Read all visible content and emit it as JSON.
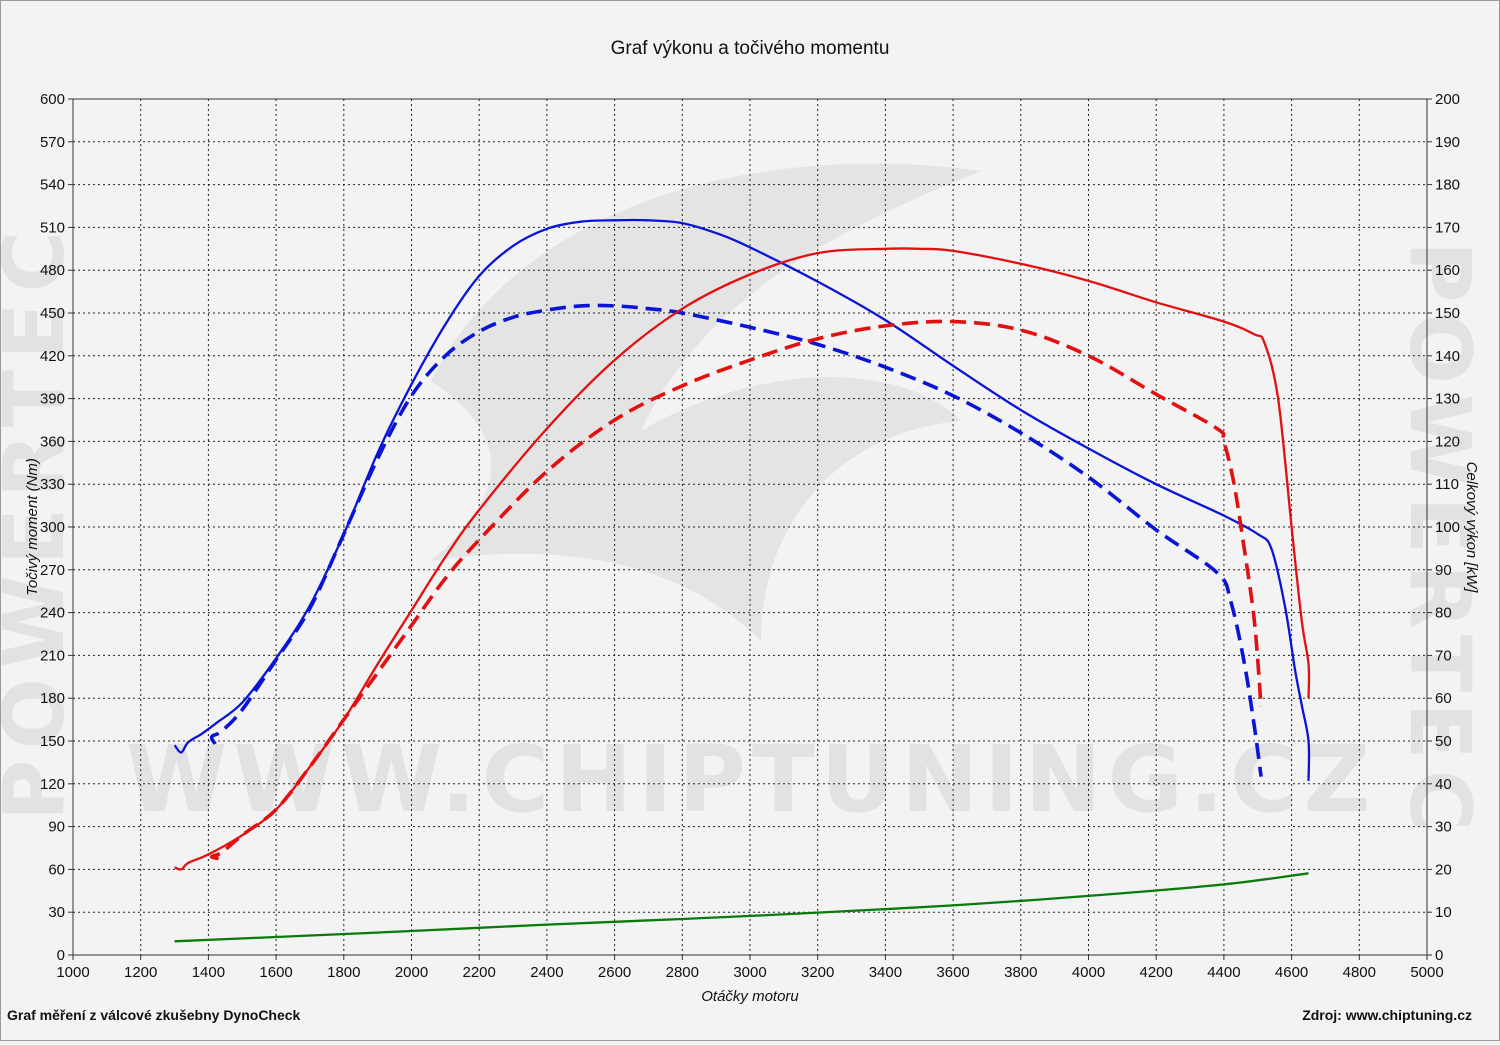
{
  "chart_data": {
    "type": "line",
    "title": "Graf výkonu a točivého momentu",
    "xlabel": "Otáčky motoru",
    "ylabel_left": "Točivý moment (Nm)",
    "ylabel_right": "Celkový výkon [kW]",
    "xlim": [
      1000,
      5000
    ],
    "xticks": [
      1000,
      1200,
      1400,
      1600,
      1800,
      2000,
      2200,
      2400,
      2600,
      2800,
      3000,
      3200,
      3400,
      3600,
      3800,
      4000,
      4200,
      4400,
      4600,
      4800,
      5000
    ],
    "ylim_left": [
      0,
      600
    ],
    "yticks_left": [
      0,
      30,
      60,
      90,
      120,
      150,
      180,
      210,
      240,
      270,
      300,
      330,
      360,
      390,
      420,
      450,
      480,
      510,
      540,
      570,
      600
    ],
    "ylim_right": [
      0,
      200
    ],
    "yticks_right": [
      0,
      10,
      20,
      30,
      40,
      50,
      60,
      70,
      80,
      90,
      100,
      110,
      120,
      130,
      140,
      150,
      160,
      170,
      180,
      190,
      200
    ],
    "grid": true,
    "series": [
      {
        "color": "#0a14d6",
        "style": "solid",
        "axis": "left",
        "x": [
          1300,
          1320,
          1340,
          1380,
          1420,
          1500,
          1600,
          1700,
          1800,
          1900,
          2000,
          2100,
          2200,
          2300,
          2400,
          2500,
          2600,
          2700,
          2800,
          2900,
          3000,
          3200,
          3400,
          3600,
          3800,
          4000,
          4200,
          4400,
          4500,
          4540,
          4580,
          4610,
          4630,
          4650,
          4650
        ],
        "y": [
          147,
          142,
          149,
          155,
          162,
          177,
          208,
          245,
          295,
          352,
          400,
          442,
          476,
          497,
          509,
          514,
          515,
          515,
          513,
          506,
          496,
          472,
          445,
          413,
          382,
          355,
          330,
          308,
          295,
          285,
          245,
          200,
          175,
          150,
          122
        ]
      },
      {
        "color": "#0a14d6",
        "style": "dashed",
        "axis": "left",
        "x": [
          1420,
          1410,
          1440,
          1500,
          1600,
          1700,
          1800,
          1900,
          2000,
          2100,
          2200,
          2300,
          2400,
          2500,
          2600,
          2700,
          2800,
          3000,
          3200,
          3400,
          3600,
          3800,
          4000,
          4200,
          4380,
          4420,
          4460,
          4490,
          4510
        ],
        "y": [
          148,
          153,
          157,
          172,
          207,
          243,
          295,
          348,
          392,
          420,
          437,
          447,
          452,
          455,
          455,
          453,
          450,
          440,
          428,
          412,
          392,
          366,
          335,
          298,
          268,
          248,
          205,
          160,
          125
        ]
      },
      {
        "color": "#e21010",
        "style": "solid",
        "axis": "right",
        "x": [
          1300,
          1320,
          1340,
          1400,
          1500,
          1600,
          1700,
          1800,
          1900,
          2000,
          2100,
          2200,
          2400,
          2600,
          2800,
          3000,
          3200,
          3400,
          3500,
          3600,
          3800,
          4000,
          4200,
          4400,
          4490,
          4520,
          4560,
          4600,
          4630,
          4650,
          4650
        ],
        "y": [
          20.5,
          20,
          21.5,
          23.5,
          28,
          34,
          44,
          55,
          68,
          80.5,
          93,
          104,
          123,
          139,
          151,
          159,
          164,
          165,
          165,
          164.5,
          161.5,
          157.5,
          152.5,
          148,
          145,
          143,
          130,
          100,
          78,
          68,
          60
        ]
      },
      {
        "color": "#e21010",
        "style": "dashed",
        "axis": "right",
        "x": [
          1430,
          1410,
          1440,
          1500,
          1600,
          1700,
          1800,
          1900,
          2000,
          2100,
          2200,
          2400,
          2600,
          2800,
          3000,
          3200,
          3400,
          3600,
          3800,
          4000,
          4200,
          4380,
          4400,
          4430,
          4460,
          4490,
          4510
        ],
        "y": [
          22.5,
          23,
          24,
          28,
          34,
          44,
          55,
          66,
          77,
          88,
          97,
          113,
          125,
          133,
          139,
          144,
          147,
          148,
          146,
          140,
          131,
          123,
          120,
          110,
          95,
          78,
          58
        ]
      },
      {
        "color": "#0a7a0a",
        "style": "solid",
        "axis": "right",
        "x": [
          1300,
          1600,
          2000,
          2400,
          2800,
          3200,
          3600,
          4000,
          4400,
          4650
        ],
        "y": [
          3.2,
          4.2,
          5.6,
          7.1,
          8.4,
          9.9,
          11.6,
          13.8,
          16.5,
          19.1
        ]
      }
    ]
  },
  "footer": {
    "left": "Graf měření z válcové zkušebny DynoCheck",
    "right": "Zdroj: www.chiptuning.cz"
  },
  "watermark": {
    "url": "WWW.CHIPTUNING.CZ",
    "side": "POWERTEC"
  }
}
